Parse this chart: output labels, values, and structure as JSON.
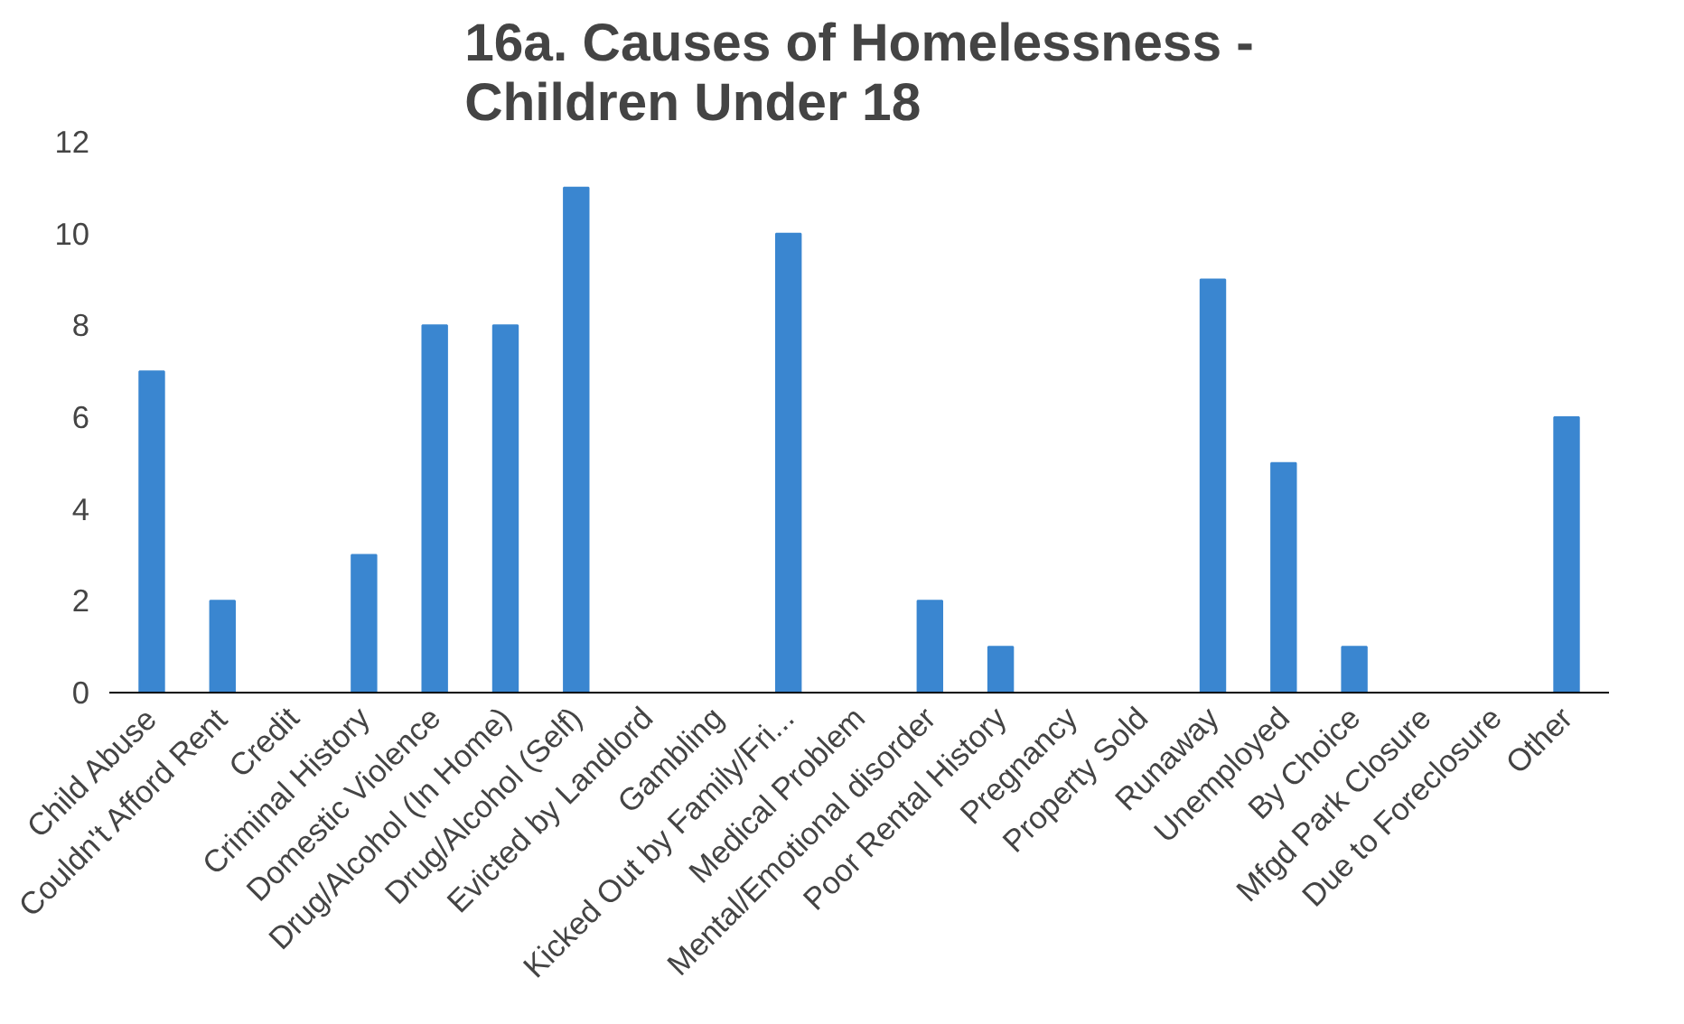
{
  "chart_data": {
    "type": "bar",
    "title": "16a. Causes of Homelessness -\nChildren Under 18",
    "categories": [
      "Child Abuse",
      "Couldn't Afford Rent",
      "Credit",
      "Criminal History",
      "Domestic Violence",
      "Drug/Alcohol (In Home)",
      "Drug/Alcohol (Self)",
      "Evicted by Landlord",
      "Gambling",
      "Kicked Out by Family/Fri...",
      "Medical Problem",
      "Mental/Emotional disorder",
      "Poor Rental History",
      "Pregnancy",
      "Property Sold",
      "Runaway",
      "Unemployed",
      "By Choice",
      "Mfgd Park Closure",
      "Due to Foreclosure",
      "Other"
    ],
    "values": [
      7,
      2,
      0,
      3,
      8,
      8,
      11,
      0,
      0,
      10,
      0,
      2,
      1,
      0,
      0,
      9,
      5,
      1,
      0,
      0,
      6
    ],
    "color": "#3a86d0",
    "ylim": [
      0,
      12
    ],
    "yticks": [
      0,
      2,
      4,
      6,
      8,
      10,
      12
    ],
    "grid": false
  }
}
